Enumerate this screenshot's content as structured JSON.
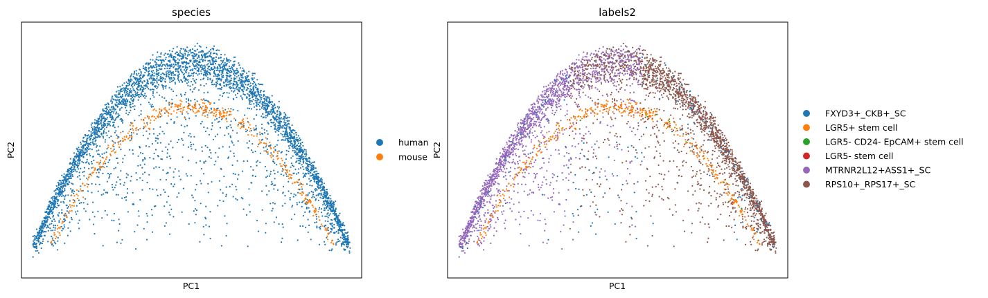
{
  "chart_data": [
    {
      "type": "scatter",
      "title": "species",
      "xlabel": "PC1",
      "ylabel": "PC2",
      "grid": false,
      "ticks": false,
      "legend_placement": "right",
      "xlim": [
        -1.0,
        1.0
      ],
      "ylim": [
        -0.08,
        1.1
      ],
      "series": [
        {
          "name": "human",
          "color": "#1f77b4"
        },
        {
          "name": "mouse",
          "color": "#ff7f0e"
        }
      ]
    },
    {
      "type": "scatter",
      "title": "labels2",
      "xlabel": "PC1",
      "ylabel": "PC2",
      "grid": false,
      "ticks": false,
      "legend_placement": "right",
      "xlim": [
        -1.0,
        1.0
      ],
      "ylim": [
        -0.08,
        1.1
      ],
      "series": [
        {
          "name": "FXYD3+_CKB+_SC",
          "color": "#1f77b4"
        },
        {
          "name": "LGR5+ stem cell",
          "color": "#ff7f0e"
        },
        {
          "name": "LGR5- CD24- EpCAM+ stem cell",
          "color": "#2ca02c"
        },
        {
          "name": "LGR5- stem cell",
          "color": "#d62728"
        },
        {
          "name": "MTRNR2L12+ASS1+_SC",
          "color": "#9467bd"
        },
        {
          "name": "RPS10+_RPS17+_SC",
          "color": "#8c564b"
        }
      ]
    }
  ]
}
